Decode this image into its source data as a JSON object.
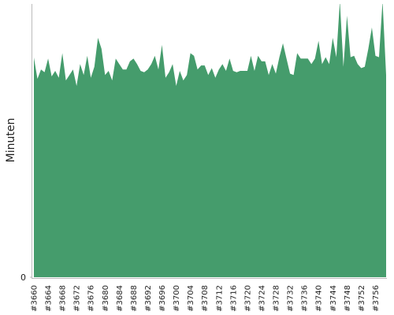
{
  "chart_data": {
    "type": "area",
    "y_label": "Minuten",
    "categories": [
      "#3660",
      null,
      null,
      null,
      "#3664",
      null,
      null,
      null,
      "#3668",
      null,
      null,
      null,
      "#3672",
      null,
      null,
      null,
      "#3676",
      null,
      null,
      null,
      "#3680",
      null,
      null,
      null,
      "#3684",
      null,
      null,
      null,
      "#3688",
      null,
      null,
      null,
      "#3692",
      null,
      null,
      null,
      "#3696",
      null,
      null,
      null,
      "#3700",
      null,
      null,
      null,
      "#3704",
      null,
      null,
      null,
      "#3708",
      null,
      null,
      null,
      "#3712",
      null,
      null,
      null,
      "#3716",
      null,
      null,
      null,
      "#3720",
      null,
      null,
      null,
      "#3724",
      null,
      null,
      null,
      "#3728",
      null,
      null,
      null,
      "#3732",
      null,
      null,
      null,
      "#3736",
      null,
      null,
      null,
      "#3740",
      null,
      null,
      null,
      "#3744",
      null,
      null,
      null,
      "#3748",
      null,
      null,
      null,
      "#3752",
      null,
      null,
      null,
      "#3756",
      null,
      null,
      null
    ],
    "values": [
      80.4,
      72.6,
      76,
      75,
      80,
      73.5,
      75.5,
      73,
      82,
      72,
      74,
      76,
      70,
      78,
      74,
      81,
      73,
      77,
      87.6,
      83.6,
      74,
      75.5,
      72,
      80,
      78,
      76,
      76,
      79,
      80,
      78,
      75.5,
      75,
      76,
      78,
      81,
      76,
      85,
      73,
      75,
      78,
      70,
      75.5,
      72,
      74,
      82,
      81,
      76,
      77.5,
      77.5,
      74,
      76.5,
      73,
      76,
      78,
      75.5,
      80,
      75.5,
      75,
      75.5,
      75.5,
      75.5,
      81,
      75.5,
      81,
      79,
      79,
      74,
      78,
      74.5,
      80.5,
      85.6,
      80,
      74.5,
      74,
      82,
      80,
      80,
      80,
      78,
      80,
      86.5,
      78,
      80.5,
      78,
      87.6,
      80.5,
      101,
      77,
      95.7,
      80.5,
      81,
      78,
      76.5,
      77,
      83.6,
      91.4,
      81,
      80.5,
      101,
      74
    ],
    "color": "#459c6c",
    "ylim": [
      0,
      100
    ],
    "yticks": [
      0
    ]
  }
}
